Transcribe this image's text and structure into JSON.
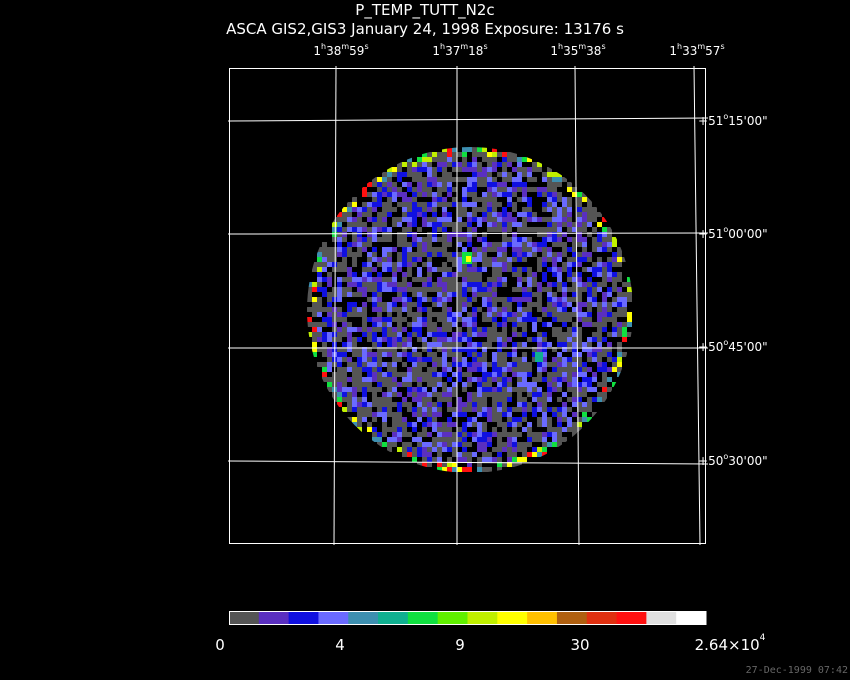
{
  "title": "P_TEMP_TUTT_N2c",
  "subtitle": "ASCA GIS2,GIS3 January 24, 1998 Exposure: 13176 s",
  "ra_labels": [
    {
      "h": "1",
      "m": "38",
      "s": "59"
    },
    {
      "h": "1",
      "m": "37",
      "s": "18"
    },
    {
      "h": "1",
      "m": "35",
      "s": "38"
    },
    {
      "h": "1",
      "m": "33",
      "s": "57"
    }
  ],
  "dec_labels": [
    {
      "sign": "+",
      "deg": "51",
      "min": "15",
      "sec": "00"
    },
    {
      "sign": "+",
      "deg": "51",
      "min": "00",
      "sec": "00"
    },
    {
      "sign": "+",
      "deg": "50",
      "min": "45",
      "sec": "00"
    },
    {
      "sign": "+",
      "deg": "50",
      "min": "30",
      "sec": "00"
    }
  ],
  "colorbar": {
    "colors": [
      "#555555",
      "#5a2fc0",
      "#1010e0",
      "#6a6aff",
      "#3d8fb0",
      "#10b090",
      "#10e040",
      "#60f000",
      "#c0f000",
      "#ffff00",
      "#ffc000",
      "#b06010",
      "#e03010",
      "#ff1010",
      "#e0e0e0",
      "#ffffff"
    ],
    "ticks": [
      "0",
      "4",
      "9",
      "30"
    ],
    "max_label": {
      "base": "2.64×10",
      "exp": "4"
    }
  },
  "timestamp": "27-Dec-1999 07:42"
}
